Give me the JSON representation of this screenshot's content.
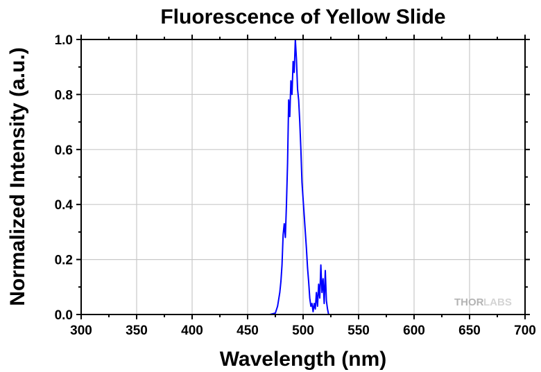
{
  "chart_data": {
    "type": "line",
    "title": "Fluorescence of Yellow Slide",
    "xlabel": "Wavelength (nm)",
    "ylabel": "Normalized Intensity (a.u.)",
    "xlim": [
      300,
      700
    ],
    "ylim": [
      0.0,
      1.0
    ],
    "x_ticks": [
      "300",
      "350",
      "400",
      "450",
      "500",
      "550",
      "600",
      "650",
      "700"
    ],
    "y_ticks": [
      "0.0",
      "0.2",
      "0.4",
      "0.6",
      "0.8",
      "1.0"
    ],
    "grid": true,
    "watermark_brand": "THORLABS",
    "series": [
      {
        "color": "#0000ff",
        "x": [
          325,
          350,
          400,
          450,
          470,
          475,
          477,
          479,
          480,
          481,
          482,
          483,
          484,
          485,
          486,
          487,
          488,
          489,
          490,
          491,
          492,
          493,
          494,
          495,
          496,
          497,
          498,
          499,
          500,
          501,
          502,
          503,
          504,
          505,
          506,
          507,
          508,
          509,
          510,
          511,
          512,
          513,
          514,
          515,
          516,
          517,
          518,
          519,
          520,
          521,
          522,
          523
        ],
        "y": [
          0.0,
          0.0,
          0.0,
          0.0,
          0.0,
          0.005,
          0.03,
          0.08,
          0.12,
          0.18,
          0.29,
          0.33,
          0.28,
          0.4,
          0.55,
          0.78,
          0.72,
          0.85,
          0.8,
          0.92,
          0.88,
          1.0,
          0.93,
          0.82,
          0.78,
          0.7,
          0.6,
          0.48,
          0.42,
          0.36,
          0.3,
          0.24,
          0.17,
          0.12,
          0.06,
          0.03,
          0.04,
          0.01,
          0.04,
          0.02,
          0.08,
          0.03,
          0.11,
          0.06,
          0.18,
          0.08,
          0.13,
          0.04,
          0.16,
          0.05,
          0.02,
          0.0
        ]
      }
    ]
  }
}
